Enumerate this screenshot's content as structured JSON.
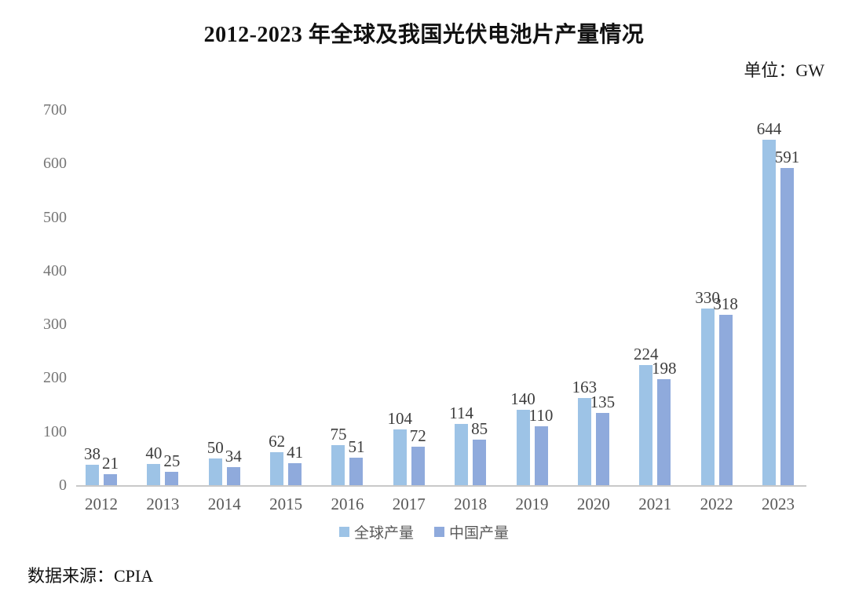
{
  "title": "2012-2023 年全球及我国光伏电池片产量情况",
  "unit_label": "单位：GW",
  "source": "数据来源：CPIA",
  "colors": {
    "global_series": "#9DC3E6",
    "china_series": "#8FAADC",
    "axis_line": "#C9C9C9",
    "tick_text": "#767676",
    "value_text": "#3D3D3D"
  },
  "chart_data": {
    "type": "bar",
    "title": "2012-2023 年全球及我国光伏电池片产量情况",
    "unit": "GW",
    "categories": [
      "2012",
      "2013",
      "2014",
      "2015",
      "2016",
      "2017",
      "2018",
      "2019",
      "2020",
      "2021",
      "2022",
      "2023"
    ],
    "series": [
      {
        "name": "全球产量",
        "color": "#9DC3E6",
        "values": [
          38,
          40,
          50,
          62,
          75,
          104,
          114,
          140,
          163,
          224,
          330,
          644
        ]
      },
      {
        "name": "中国产量",
        "color": "#8FAADC",
        "values": [
          21,
          25,
          34,
          41,
          51,
          72,
          85,
          110,
          135,
          198,
          318,
          591
        ]
      }
    ],
    "ylim": [
      0,
      700
    ],
    "yticks": [
      0,
      100,
      200,
      300,
      400,
      500,
      600,
      700
    ],
    "grid": false,
    "data_labels": true,
    "legend_position": "bottom",
    "source": "数据来源：CPIA"
  }
}
